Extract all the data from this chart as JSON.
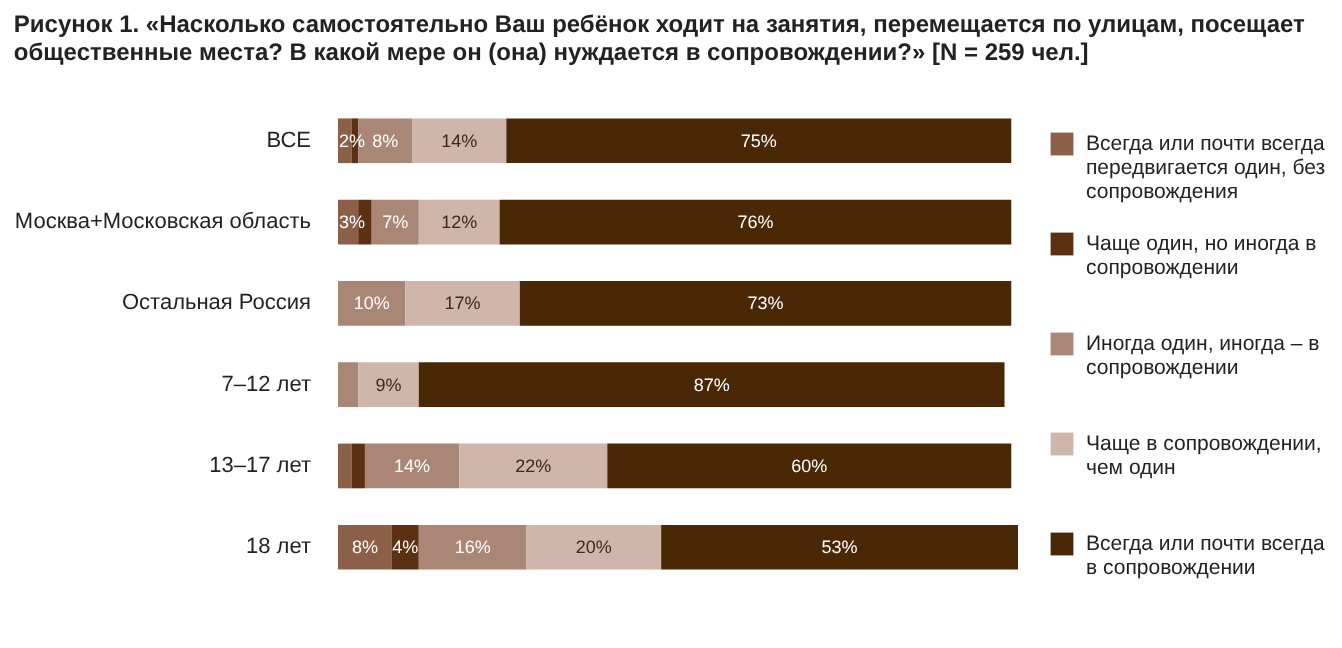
{
  "chart_data": {
    "type": "bar",
    "orientation": "horizontal",
    "stacked": true,
    "title": "Рисунок 1. «Насколько самостоятельно Ваш ребёнок ходит на занятия, перемещается по улицам, посещает общественные места? В какой мере он (она) нуждается в сопровождении?» [N = 259 чел.]",
    "categories": [
      "ВСЕ",
      "Москва+Московская область",
      "Остальная Россия",
      "7–12 лет",
      "13–17 лет",
      "18 лет"
    ],
    "series": [
      {
        "name": "Всегда или почти всегда передвигается один, без сопровождения",
        "color": "#8c5f48",
        "values": [
          2,
          3,
          0,
          0,
          2,
          8
        ],
        "value_labels": [
          "2%",
          "3%",
          null,
          null,
          null,
          "8%"
        ]
      },
      {
        "name": "Чаще один, но иногда в сопровождении",
        "color": "#5c3012",
        "values": [
          1,
          2,
          0,
          0,
          2,
          4
        ],
        "value_labels": [
          null,
          null,
          null,
          null,
          null,
          "4%"
        ]
      },
      {
        "name": "Иногда один, иногда – в сопровождении",
        "color": "#aa8676",
        "values": [
          8,
          7,
          10,
          3,
          14,
          16
        ],
        "value_labels": [
          "8%",
          "7%",
          "10%",
          null,
          "14%",
          "16%"
        ]
      },
      {
        "name": "Чаще в сопровождении, чем один",
        "color": "#cfb5aa",
        "values": [
          14,
          12,
          17,
          9,
          22,
          20
        ],
        "value_labels": [
          "14%",
          "12%",
          "17%",
          "9%",
          "22%",
          "20%"
        ]
      },
      {
        "name": "Всегда или почти всегда в сопровождении",
        "color": "#4a2806",
        "values": [
          75,
          76,
          73,
          87,
          60,
          53
        ],
        "value_labels": [
          "75%",
          "76%",
          "73%",
          "87%",
          "60%",
          "53%"
        ]
      }
    ],
    "legend": "right"
  }
}
